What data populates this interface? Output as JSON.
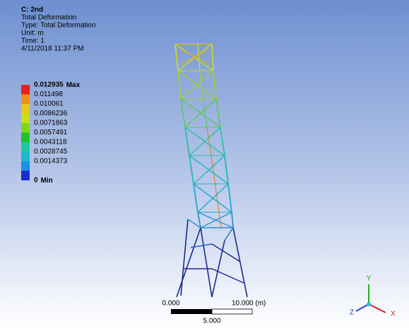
{
  "header": {
    "lines": [
      "C: 2nd",
      "Total Deformation",
      "Type: Total Deformation",
      "Unit: m",
      "Time: 1",
      "4/11/2018 11:37 PM"
    ]
  },
  "legend": {
    "items": [
      {
        "label": "0.012935",
        "tag": "Max",
        "color": "#e8201c"
      },
      {
        "label": "0.011498",
        "color": "#f0901c"
      },
      {
        "label": "0.010061",
        "color": "#e8c81c"
      },
      {
        "label": "0.0086236",
        "color": "#c8e01c"
      },
      {
        "label": "0.0071863",
        "color": "#80d81c"
      },
      {
        "label": "0.0057491",
        "color": "#20c030"
      },
      {
        "label": "0.0043118",
        "color": "#20c8a0"
      },
      {
        "label": "0.0028745",
        "color": "#20b8d0"
      },
      {
        "label": "0.0014373",
        "color": "#2090e0"
      },
      {
        "label": "0",
        "tag": "Min",
        "color": "#1830c8"
      }
    ]
  },
  "scale_bar": {
    "left": "0.000",
    "right": "10.000 (m)",
    "middle": "5.000"
  },
  "triad": {
    "y": "Y",
    "x": "X",
    "z": "Z"
  }
}
